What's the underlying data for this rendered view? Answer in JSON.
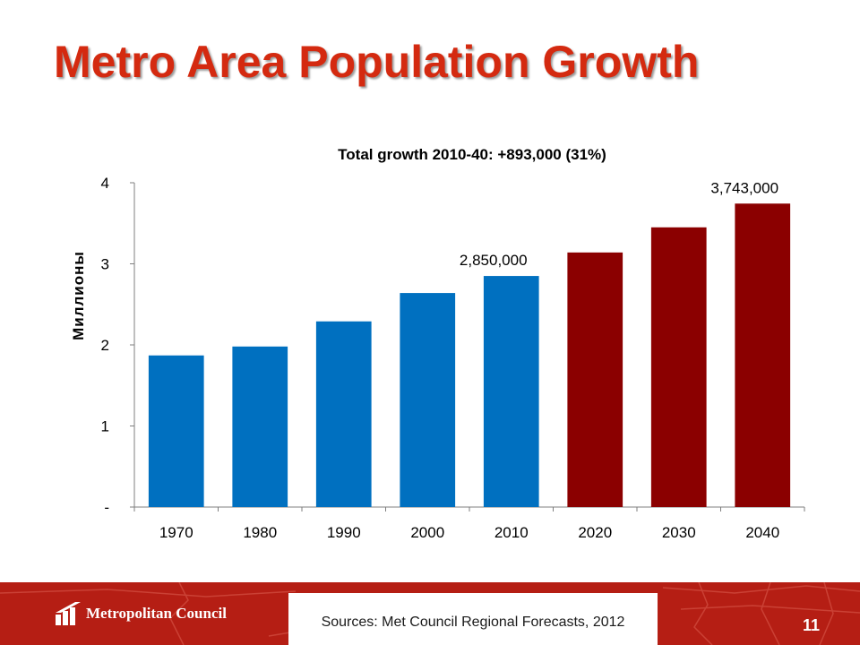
{
  "slide": {
    "title": "Metro Area Population Growth",
    "source": "Sources: Met Council Regional Forecasts, 2012",
    "logo_text": "Metropolitan Council",
    "page_number": "11"
  },
  "colors": {
    "historical": "#0070c0",
    "forecast": "#8b0000",
    "title": "#d42a10",
    "footer": "#b51e14"
  },
  "chart_data": {
    "type": "bar",
    "title": "Total growth 2010-40: +893,000 (31%)",
    "xlabel": "",
    "ylabel": "Миллионы",
    "categories": [
      "1970",
      "1980",
      "1990",
      "2000",
      "2010",
      "2020",
      "2030",
      "2040"
    ],
    "values": [
      1.87,
      1.98,
      2.29,
      2.64,
      2.85,
      3.14,
      3.45,
      3.743
    ],
    "bar_kind": [
      "historical",
      "historical",
      "historical",
      "historical",
      "historical",
      "forecast",
      "forecast",
      "forecast"
    ],
    "data_labels": [
      {
        "category": "2010",
        "text": "2,850,000"
      },
      {
        "category": "2040",
        "text": "3,743,000"
      }
    ],
    "ylim": [
      0,
      4
    ],
    "yticks": [
      {
        "value": 0,
        "label": "-"
      },
      {
        "value": 1,
        "label": "1"
      },
      {
        "value": 2,
        "label": "2"
      },
      {
        "value": 3,
        "label": "3"
      },
      {
        "value": 4,
        "label": "4"
      }
    ],
    "grid": false,
    "legend": "none"
  }
}
